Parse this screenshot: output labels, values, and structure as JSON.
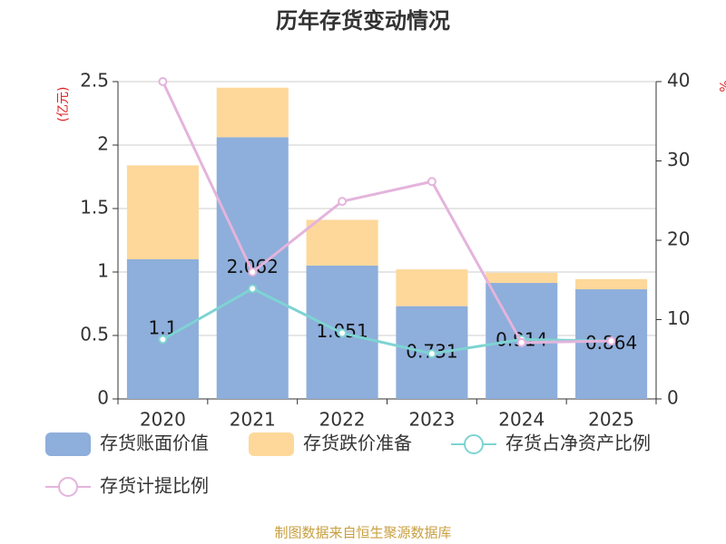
{
  "chart_data": {
    "type": "bar",
    "title": "历年存货变动情况",
    "source": "制图数据来自恒生聚源数据库",
    "y_label": "(亿元)",
    "y2_label": "%",
    "categories": [
      "2020",
      "2021",
      "2022",
      "2023",
      "2024",
      "2025"
    ],
    "stacked": true,
    "grid": true,
    "ylim": [
      0,
      2.5
    ],
    "yticks": [
      0,
      0.5,
      1,
      1.5,
      2,
      2.5
    ],
    "y2lim": [
      0,
      40
    ],
    "y2ticks": [
      0,
      10,
      20,
      30,
      40
    ],
    "series": [
      {
        "name": "存货账面价值",
        "type": "bar",
        "color": "#8eaedb",
        "values": [
          1.1,
          2.062,
          1.051,
          0.731,
          0.914,
          0.864
        ],
        "show_labels": true
      },
      {
        "name": "存货跌价准备",
        "type": "bar",
        "color": "#fdd89a",
        "values": [
          0.74,
          0.39,
          0.36,
          0.29,
          0.08,
          0.08
        ]
      },
      {
        "name": "存货占净资产比例",
        "type": "line",
        "axis": "y2",
        "color": "#7ed3d3",
        "values": [
          7.5,
          13.9,
          8.3,
          5.7,
          7.5,
          7.3
        ]
      },
      {
        "name": "存货计提比例",
        "type": "line",
        "axis": "y2",
        "color": "#e4b4dc",
        "values": [
          40,
          16,
          24.9,
          27.4,
          7.1,
          7.3
        ]
      }
    ]
  }
}
